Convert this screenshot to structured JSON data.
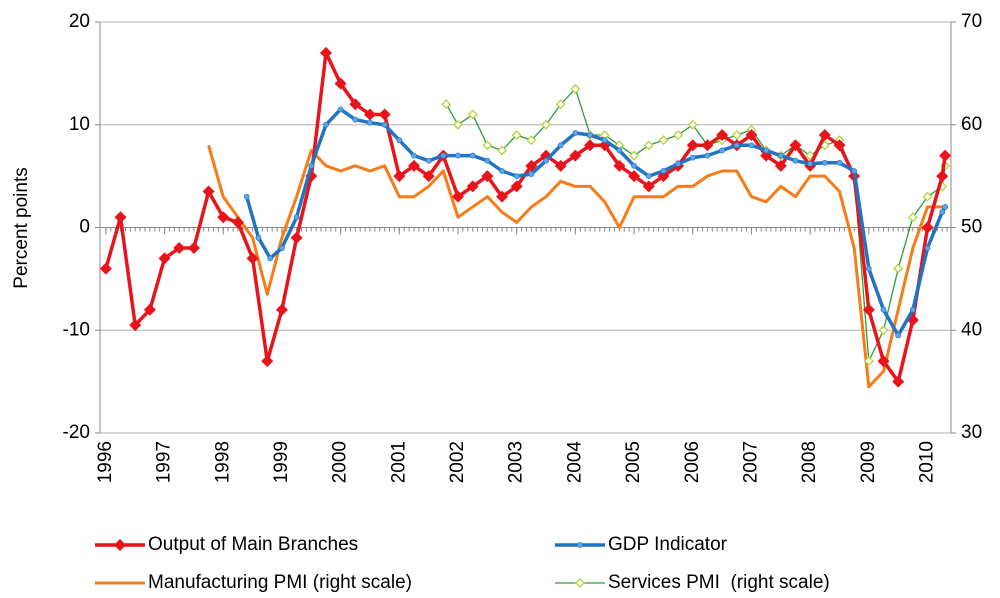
{
  "chart_data": {
    "type": "line",
    "y_label": "Percent points",
    "xlim": [
      1995.9,
      2010.4
    ],
    "xticks": [
      1996,
      1997,
      1998,
      1999,
      2000,
      2001,
      2002,
      2003,
      2004,
      2005,
      2006,
      2007,
      2008,
      2009,
      2010
    ],
    "ylim": [
      -20,
      20
    ],
    "yticks": [
      -20,
      -10,
      0,
      10,
      20
    ],
    "y2lim": [
      30,
      70
    ],
    "y2ticks": [
      30,
      40,
      50,
      60,
      70
    ],
    "grid": true,
    "series": [
      {
        "name": "Output of Main Branches",
        "color": "#e8141b",
        "marker": "diamond",
        "marker_color": "#e8141b",
        "x": [
          1996.0,
          1996.25,
          1996.5,
          1996.75,
          1997.0,
          1997.25,
          1997.5,
          1997.75,
          1998.0,
          1998.25,
          1998.5,
          1998.75,
          1999.0,
          1999.25,
          1999.5,
          1999.75,
          2000.0,
          2000.25,
          2000.5,
          2000.75,
          2001.0,
          2001.25,
          2001.5,
          2001.75,
          2002.0,
          2002.25,
          2002.5,
          2002.75,
          2003.0,
          2003.25,
          2003.5,
          2003.75,
          2004.0,
          2004.25,
          2004.5,
          2004.75,
          2005.0,
          2005.25,
          2005.5,
          2005.75,
          2006.0,
          2006.25,
          2006.5,
          2006.75,
          2007.0,
          2007.25,
          2007.5,
          2007.75,
          2008.0,
          2008.25,
          2008.5,
          2008.75,
          2009.0,
          2009.25,
          2009.5,
          2009.75,
          2010.0,
          2010.25,
          2010.3
        ],
        "values": [
          -4,
          1,
          -9.5,
          -8,
          -3,
          -2,
          -2,
          3.5,
          1,
          0.5,
          -3,
          -13,
          -8,
          -1,
          5,
          17,
          14,
          12,
          11,
          11,
          5,
          6,
          5,
          7,
          3,
          4,
          5,
          3,
          4,
          6,
          7,
          6,
          7,
          8,
          8,
          6,
          5,
          4,
          5,
          6,
          8,
          8,
          9,
          8,
          9,
          7,
          6,
          8,
          6,
          9,
          8,
          5,
          -8,
          -13,
          -15,
          -9,
          0,
          5,
          7
        ]
      },
      {
        "name": "GDP Indicator",
        "color": "#2273c2",
        "marker": "circle",
        "marker_color": "#5aa6e8",
        "x": [
          1998.4,
          1998.6,
          1998.8,
          1999.0,
          1999.25,
          1999.5,
          1999.75,
          2000.0,
          2000.25,
          2000.5,
          2000.75,
          2001.0,
          2001.25,
          2001.5,
          2001.75,
          2002.0,
          2002.25,
          2002.5,
          2002.75,
          2003.0,
          2003.25,
          2003.5,
          2003.75,
          2004.0,
          2004.25,
          2004.5,
          2004.75,
          2005.0,
          2005.25,
          2005.5,
          2005.75,
          2006.0,
          2006.25,
          2006.5,
          2006.75,
          2007.0,
          2007.25,
          2007.5,
          2007.75,
          2008.0,
          2008.25,
          2008.5,
          2008.75,
          2009.0,
          2009.25,
          2009.5,
          2009.75,
          2010.0,
          2010.25,
          2010.3
        ],
        "values": [
          3,
          -1,
          -3,
          -2,
          1,
          6,
          10,
          11.5,
          10.5,
          10.2,
          10,
          8.5,
          7,
          6.5,
          7,
          7,
          7,
          6.5,
          5.5,
          5,
          5.2,
          6.5,
          8,
          9.2,
          9,
          8.5,
          7.5,
          6,
          5,
          5.5,
          6.2,
          6.8,
          7,
          7.5,
          8,
          8,
          7.5,
          7,
          6.5,
          6.2,
          6.3,
          6.3,
          5.5,
          -4,
          -8,
          -10.5,
          -8,
          -2,
          1.5,
          2
        ]
      },
      {
        "name": "Manufacturing PMI (right scale)",
        "color": "#f77b16",
        "axis": "y2",
        "x": [
          1997.75,
          1998.0,
          1998.25,
          1998.5,
          1998.75,
          1999.0,
          1999.25,
          1999.5,
          1999.75,
          2000.0,
          2000.25,
          2000.5,
          2000.75,
          2001.0,
          2001.25,
          2001.5,
          2001.75,
          2002.0,
          2002.25,
          2002.5,
          2002.75,
          2003.0,
          2003.25,
          2003.5,
          2003.75,
          2004.0,
          2004.25,
          2004.5,
          2004.75,
          2005.0,
          2005.25,
          2005.5,
          2005.75,
          2006.0,
          2006.25,
          2006.5,
          2006.75,
          2007.0,
          2007.25,
          2007.5,
          2007.75,
          2008.0,
          2008.25,
          2008.5,
          2008.75,
          2009.0,
          2009.25,
          2009.5,
          2009.75,
          2010.0,
          2010.25,
          2010.3
        ],
        "values": [
          58,
          53,
          51,
          49,
          43.5,
          49,
          53,
          57.5,
          56,
          55.5,
          56,
          55.5,
          56,
          53,
          53,
          54,
          55.5,
          51,
          52,
          53,
          51.5,
          50.5,
          52,
          53,
          54.5,
          54,
          54,
          52.5,
          50,
          53,
          53,
          53,
          54,
          54,
          55,
          55.5,
          55.5,
          53,
          52.5,
          54,
          53,
          55,
          55,
          53.5,
          48,
          34.5,
          36,
          42,
          48,
          52,
          52,
          52
        ]
      },
      {
        "name": "Services PMI  (right scale)",
        "color": "#2f9b3f",
        "marker": "diamond-open",
        "marker_color": "#b5d334",
        "axis": "y2",
        "x": [
          2001.8,
          2002.0,
          2002.25,
          2002.5,
          2002.75,
          2003.0,
          2003.25,
          2003.5,
          2003.75,
          2004.0,
          2004.25,
          2004.5,
          2004.75,
          2005.0,
          2005.25,
          2005.5,
          2005.75,
          2006.0,
          2006.25,
          2006.5,
          2006.75,
          2007.0,
          2007.25,
          2007.5,
          2007.75,
          2008.0,
          2008.25,
          2008.5,
          2008.75,
          2009.0,
          2009.25,
          2009.5,
          2009.75,
          2010.0,
          2010.25,
          2010.3
        ],
        "values": [
          62,
          60,
          61,
          58,
          57.5,
          59,
          58.5,
          60,
          62,
          63.5,
          59,
          59,
          58,
          57,
          58,
          58.5,
          59,
          60,
          58,
          58.5,
          59,
          59.5,
          57.5,
          57,
          58,
          57,
          58,
          58.5,
          55,
          37,
          40,
          46,
          51,
          53,
          54,
          56
        ]
      }
    ]
  }
}
